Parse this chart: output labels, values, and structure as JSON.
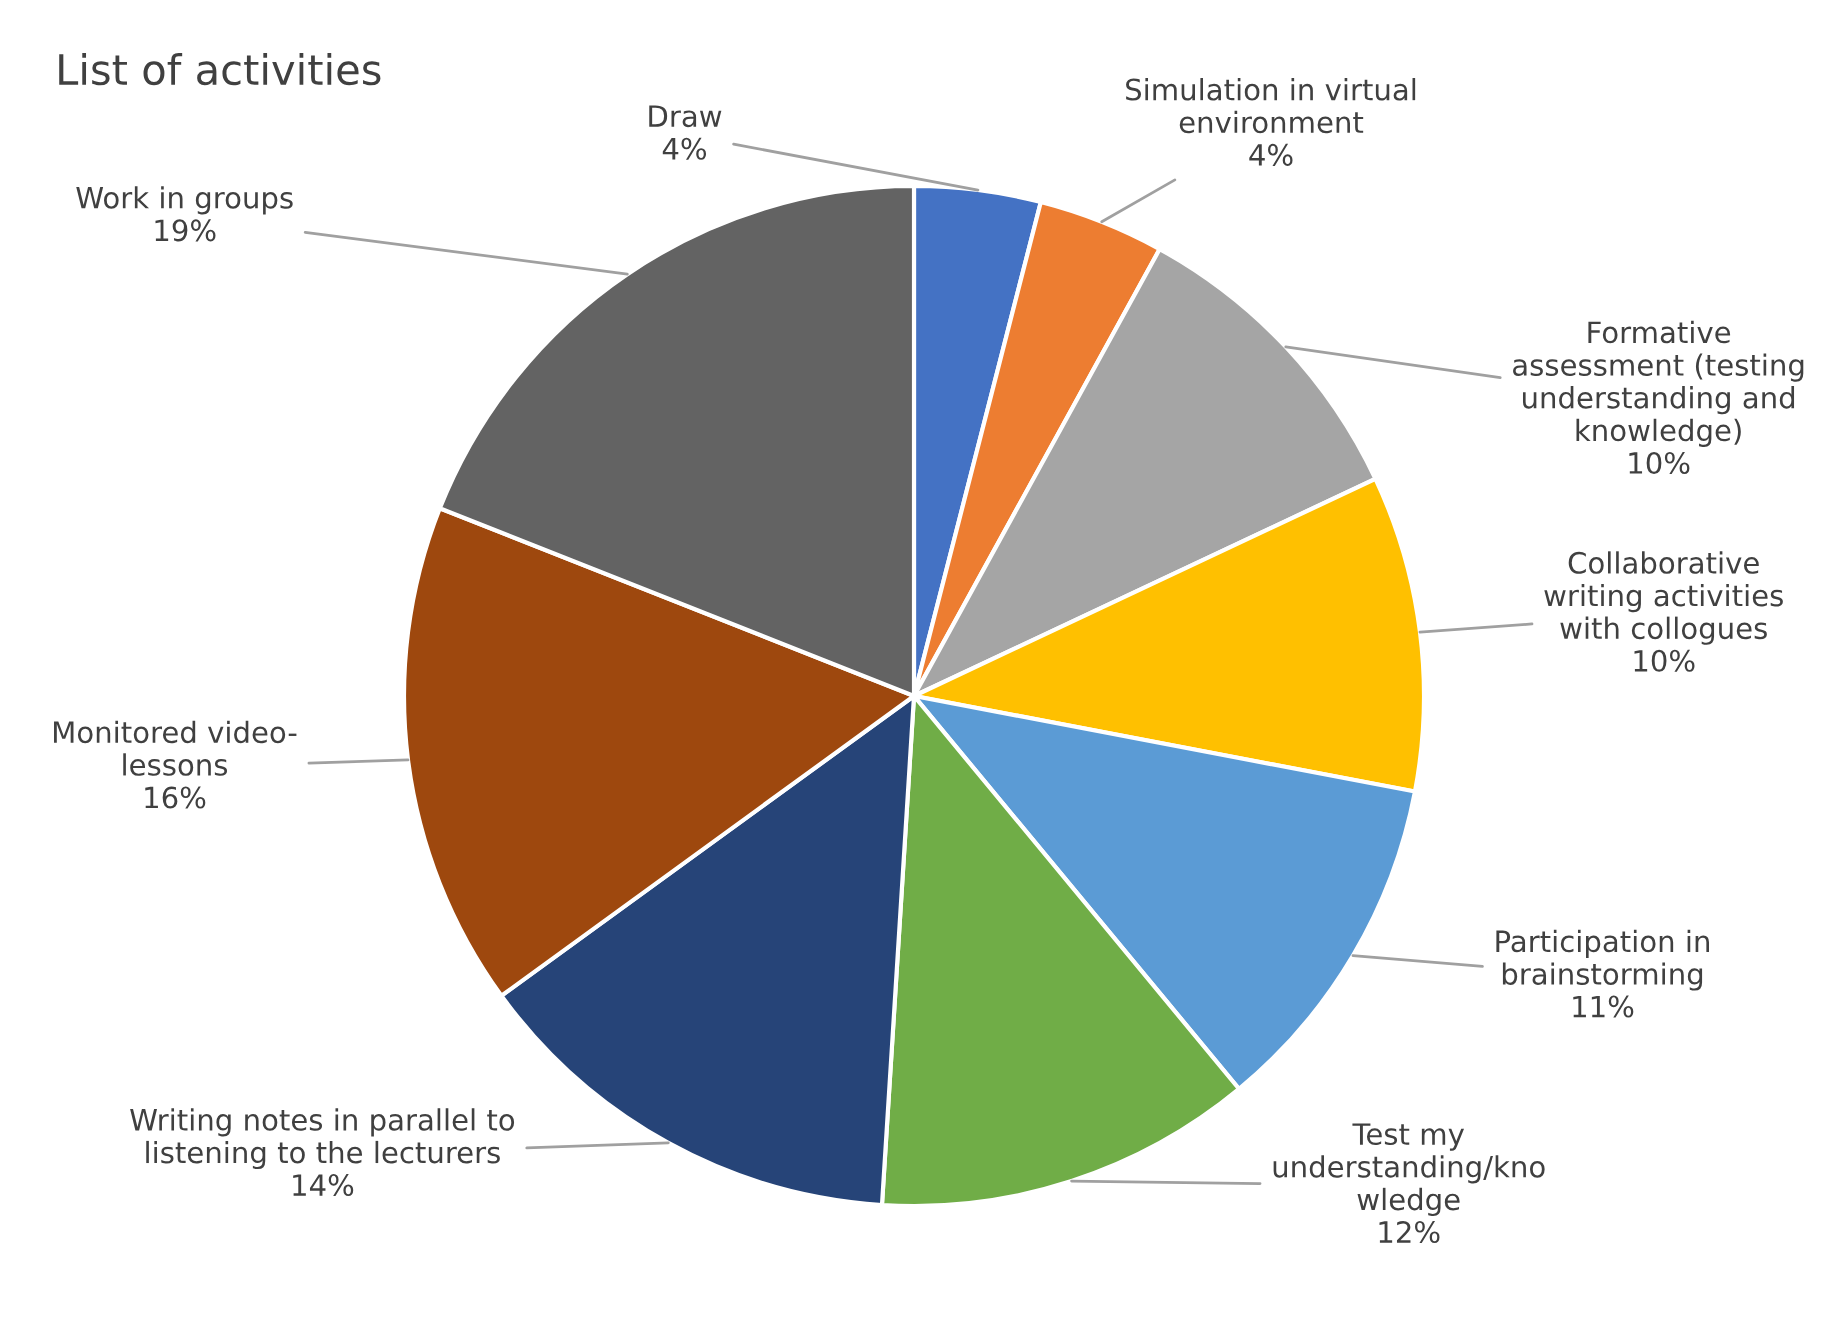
{
  "chart_data": {
    "type": "pie",
    "title": "List of activities",
    "categories": [
      "Draw",
      "Simulation in virtual\nenvironment",
      "Formative\nassessment (testing\nunderstanding and\nknowledge)",
      "Collaborative\nwriting activities\nwith collogues",
      "Participation in\nbrainstorming",
      "Test my\nunderstanding/kno\nwledge",
      "Writing notes in parallel to\nlistening to the lecturers",
      "Monitored video-\nlessons",
      "Work in groups"
    ],
    "values": [
      4,
      4,
      10,
      10,
      11,
      12,
      14,
      16,
      19
    ],
    "value_labels": [
      "4%",
      "4%",
      "10%",
      "10%",
      "11%",
      "12%",
      "14%",
      "16%",
      "19%"
    ],
    "colors": [
      "#4472c4",
      "#ed7d31",
      "#a5a5a5",
      "#ffc000",
      "#5b9bd5",
      "#70ad47",
      "#264478",
      "#9e480e",
      "#636363"
    ]
  }
}
